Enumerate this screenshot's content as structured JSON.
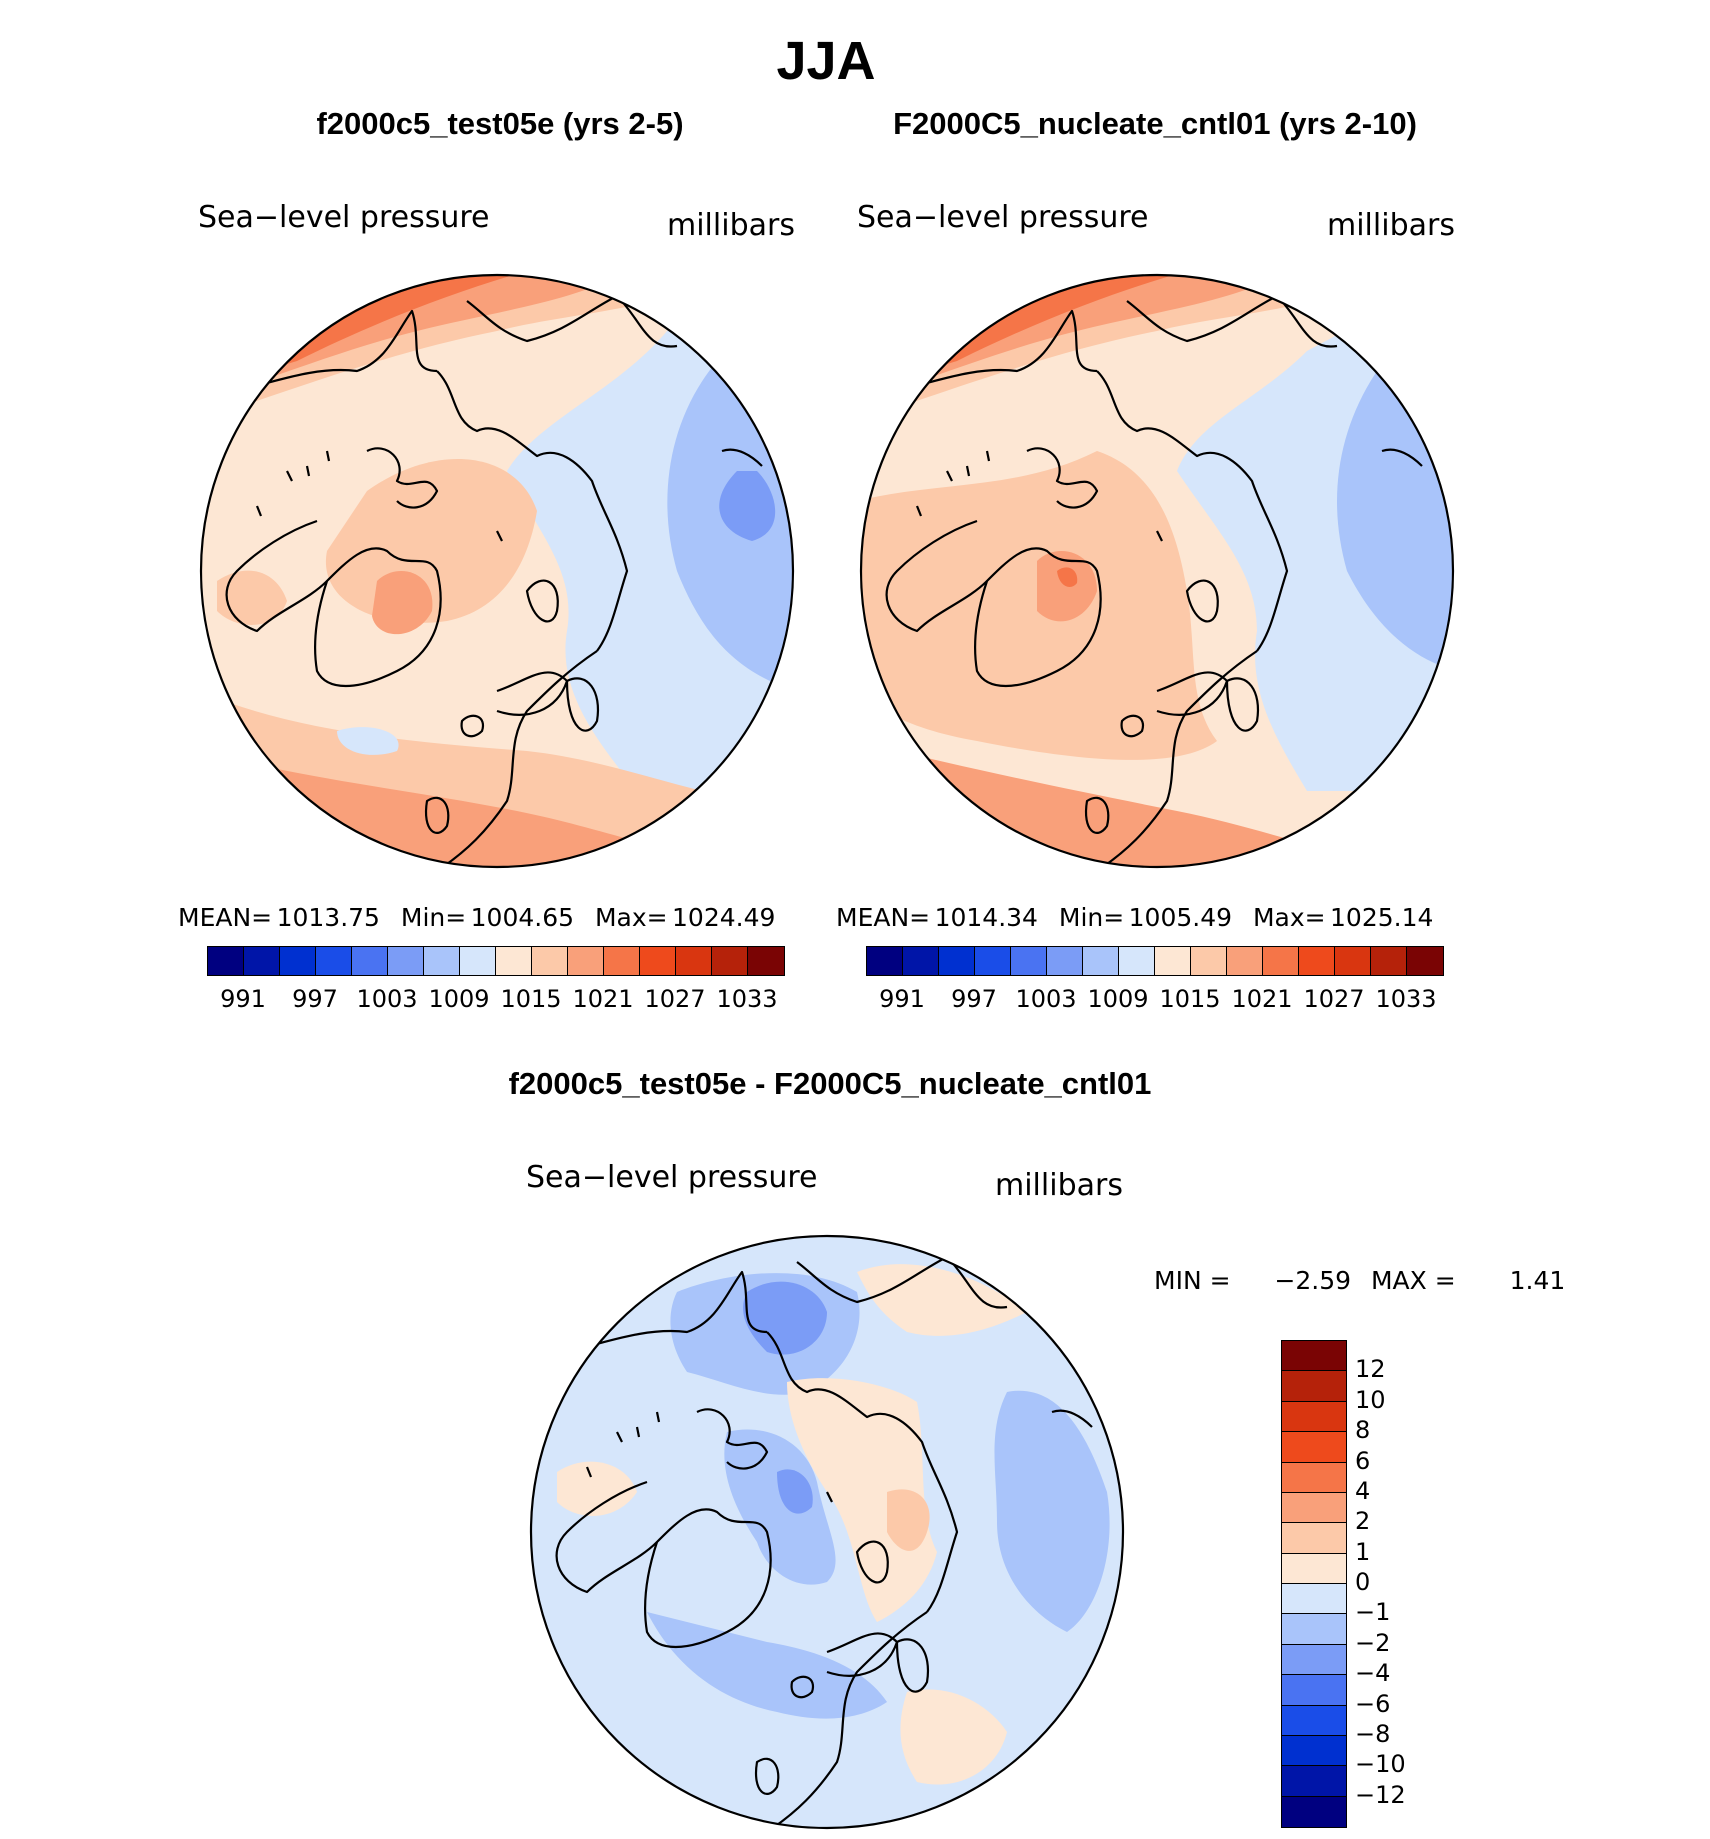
{
  "figure": {
    "season_title": "JJA",
    "diff_title": "f2000c5_test05e - F2000C5_nucleate_cntl01"
  },
  "panels": [
    {
      "case_title": "f2000c5_test05e (yrs 2-5)",
      "variable": "Sea−level pressure",
      "units": "millibars",
      "stats": {
        "mean_label": "MEAN=",
        "mean": "1013.75",
        "min_label": "Min=",
        "min": "1004.65",
        "max_label": "Max=",
        "max": "1024.49"
      }
    },
    {
      "case_title": "F2000C5_nucleate_cntl01 (yrs 2-10)",
      "variable": "Sea−level pressure",
      "units": "millibars",
      "stats": {
        "mean_label": "MEAN=",
        "mean": "1014.34",
        "min_label": "Min=",
        "min": "1005.49",
        "max_label": "Max=",
        "max": "1025.14"
      }
    }
  ],
  "diff_panel": {
    "variable": "Sea−level pressure",
    "units": "millibars",
    "minmax": {
      "min_label": "MIN =",
      "min": "−2.59",
      "max_label": "MAX =",
      "max": "1.41"
    }
  },
  "colorbar_abs": {
    "colors": [
      "#000080",
      "#0015a8",
      "#0030d0",
      "#1a4de8",
      "#4a73f2",
      "#7b9cf6",
      "#a9c4fa",
      "#d6e6fb",
      "#fde7d4",
      "#fcc9a9",
      "#f9a07a",
      "#f57548",
      "#ee4a1c",
      "#d93610",
      "#b5220a",
      "#7a0404"
    ],
    "tick_labels": [
      "991",
      "997",
      "1003",
      "1009",
      "1015",
      "1021",
      "1027",
      "1033"
    ]
  },
  "colorbar_diff": {
    "colors": [
      "#7a0404",
      "#b5220a",
      "#d93610",
      "#ee4a1c",
      "#f57548",
      "#f9a07a",
      "#fcc9a9",
      "#fde7d4",
      "#d6e6fb",
      "#a9c4fa",
      "#7b9cf6",
      "#4a73f2",
      "#1a4de8",
      "#0030d0",
      "#0015a8",
      "#000080"
    ],
    "tick_labels": [
      "12",
      "10",
      "8",
      "6",
      "4",
      "2",
      "1",
      "0",
      "−1",
      "−2",
      "−4",
      "−6",
      "−8",
      "−10",
      "−12"
    ]
  },
  "map_colors": {
    "c1": "#fde7d4",
    "c2": "#fcc9a9",
    "c3": "#f9a07a",
    "c4": "#f57548",
    "c5": "#ee4a1c",
    "b1": "#d6e6fb",
    "b2": "#a9c4fa",
    "b3": "#7b9cf6"
  }
}
